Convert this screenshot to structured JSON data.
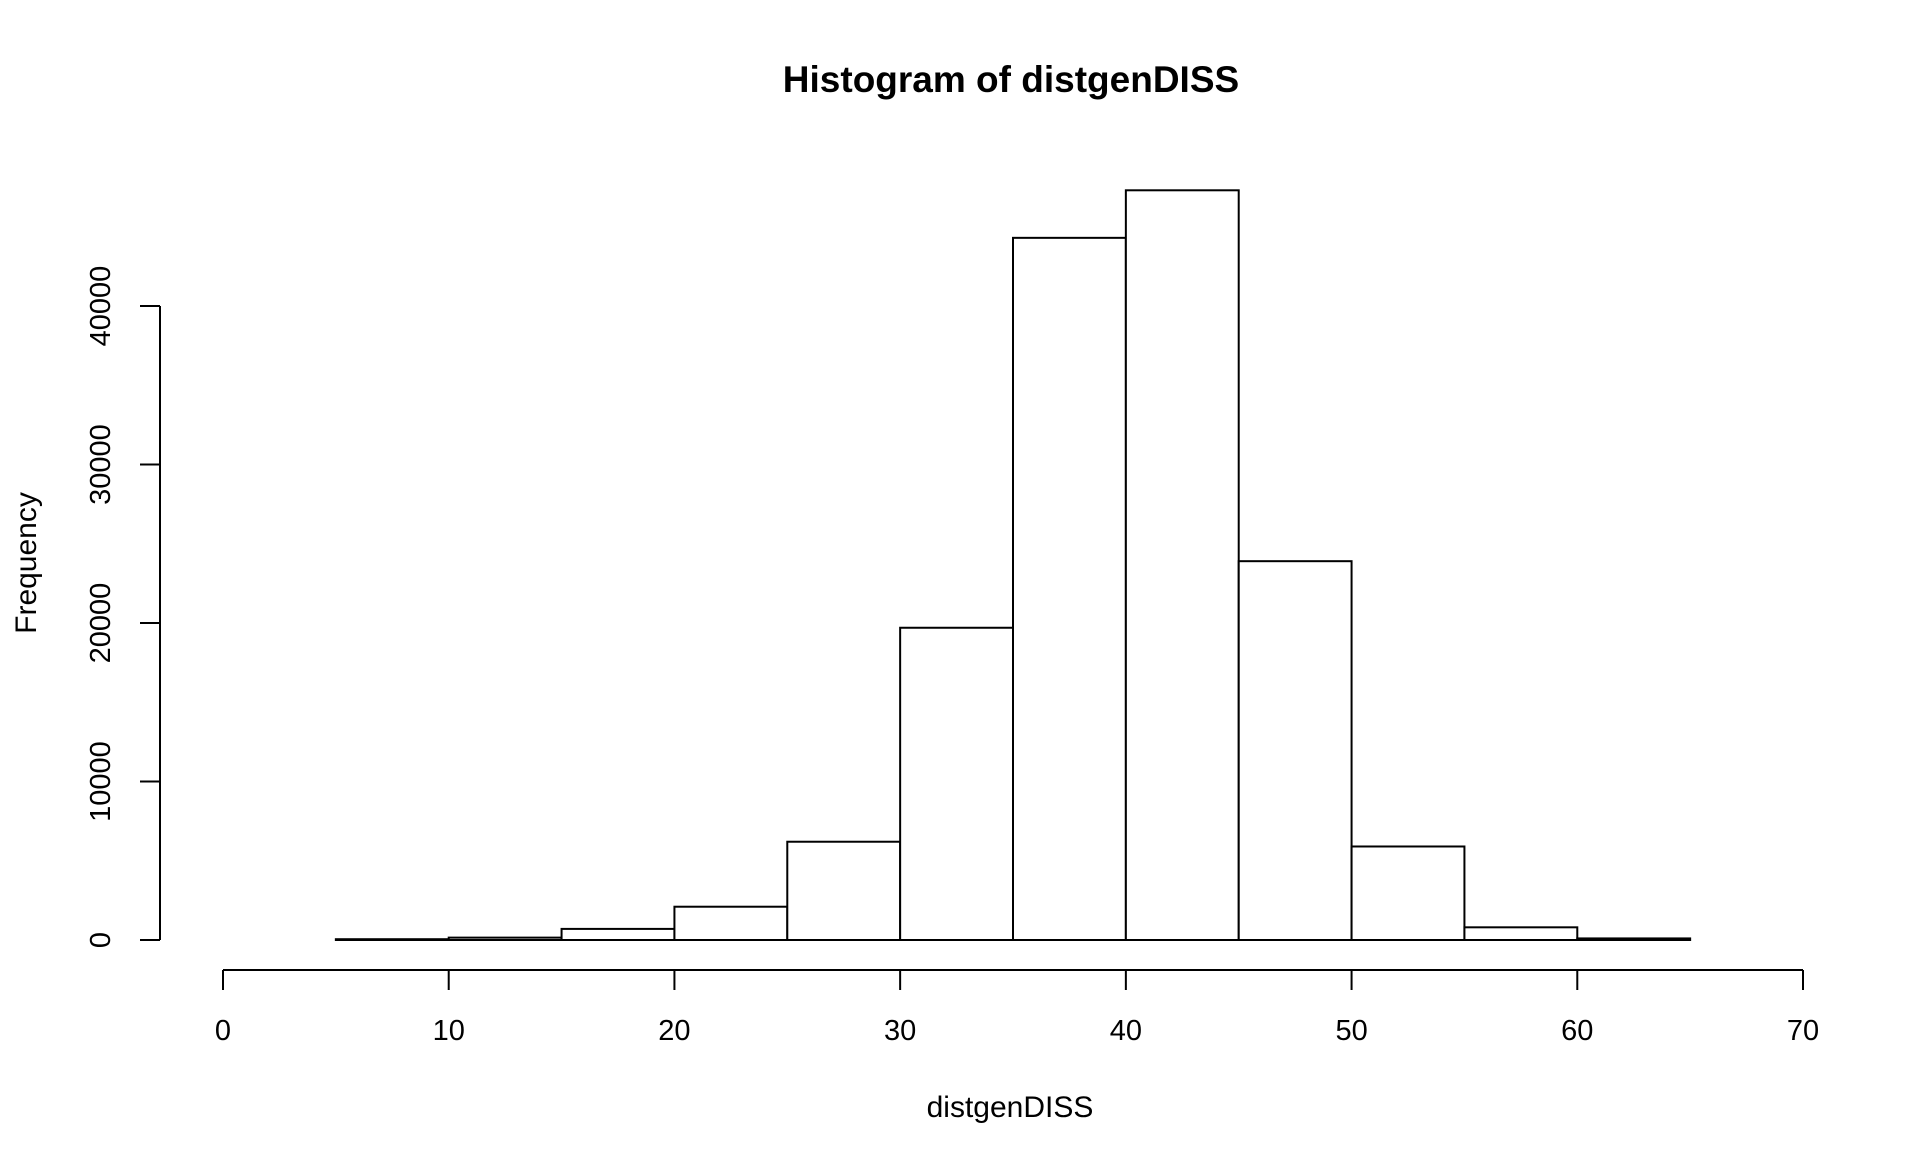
{
  "chart_data": {
    "type": "bar",
    "title": "Histogram of distgenDISS",
    "xlabel": "distgenDISS",
    "ylabel": "Frequency",
    "xlim": [
      0,
      70
    ],
    "ylim": [
      0,
      40000
    ],
    "x_ticks": [
      0,
      10,
      20,
      30,
      40,
      50,
      60,
      70
    ],
    "y_ticks": [
      0,
      10000,
      20000,
      30000,
      40000
    ],
    "bin_edges": [
      0,
      5,
      10,
      15,
      20,
      25,
      30,
      35,
      40,
      45,
      50,
      55,
      60,
      65,
      70
    ],
    "values": [
      0,
      50,
      150,
      700,
      2100,
      6200,
      19700,
      44300,
      47300,
      23900,
      5900,
      800,
      100,
      0
    ],
    "grid": false,
    "legend": "none"
  }
}
